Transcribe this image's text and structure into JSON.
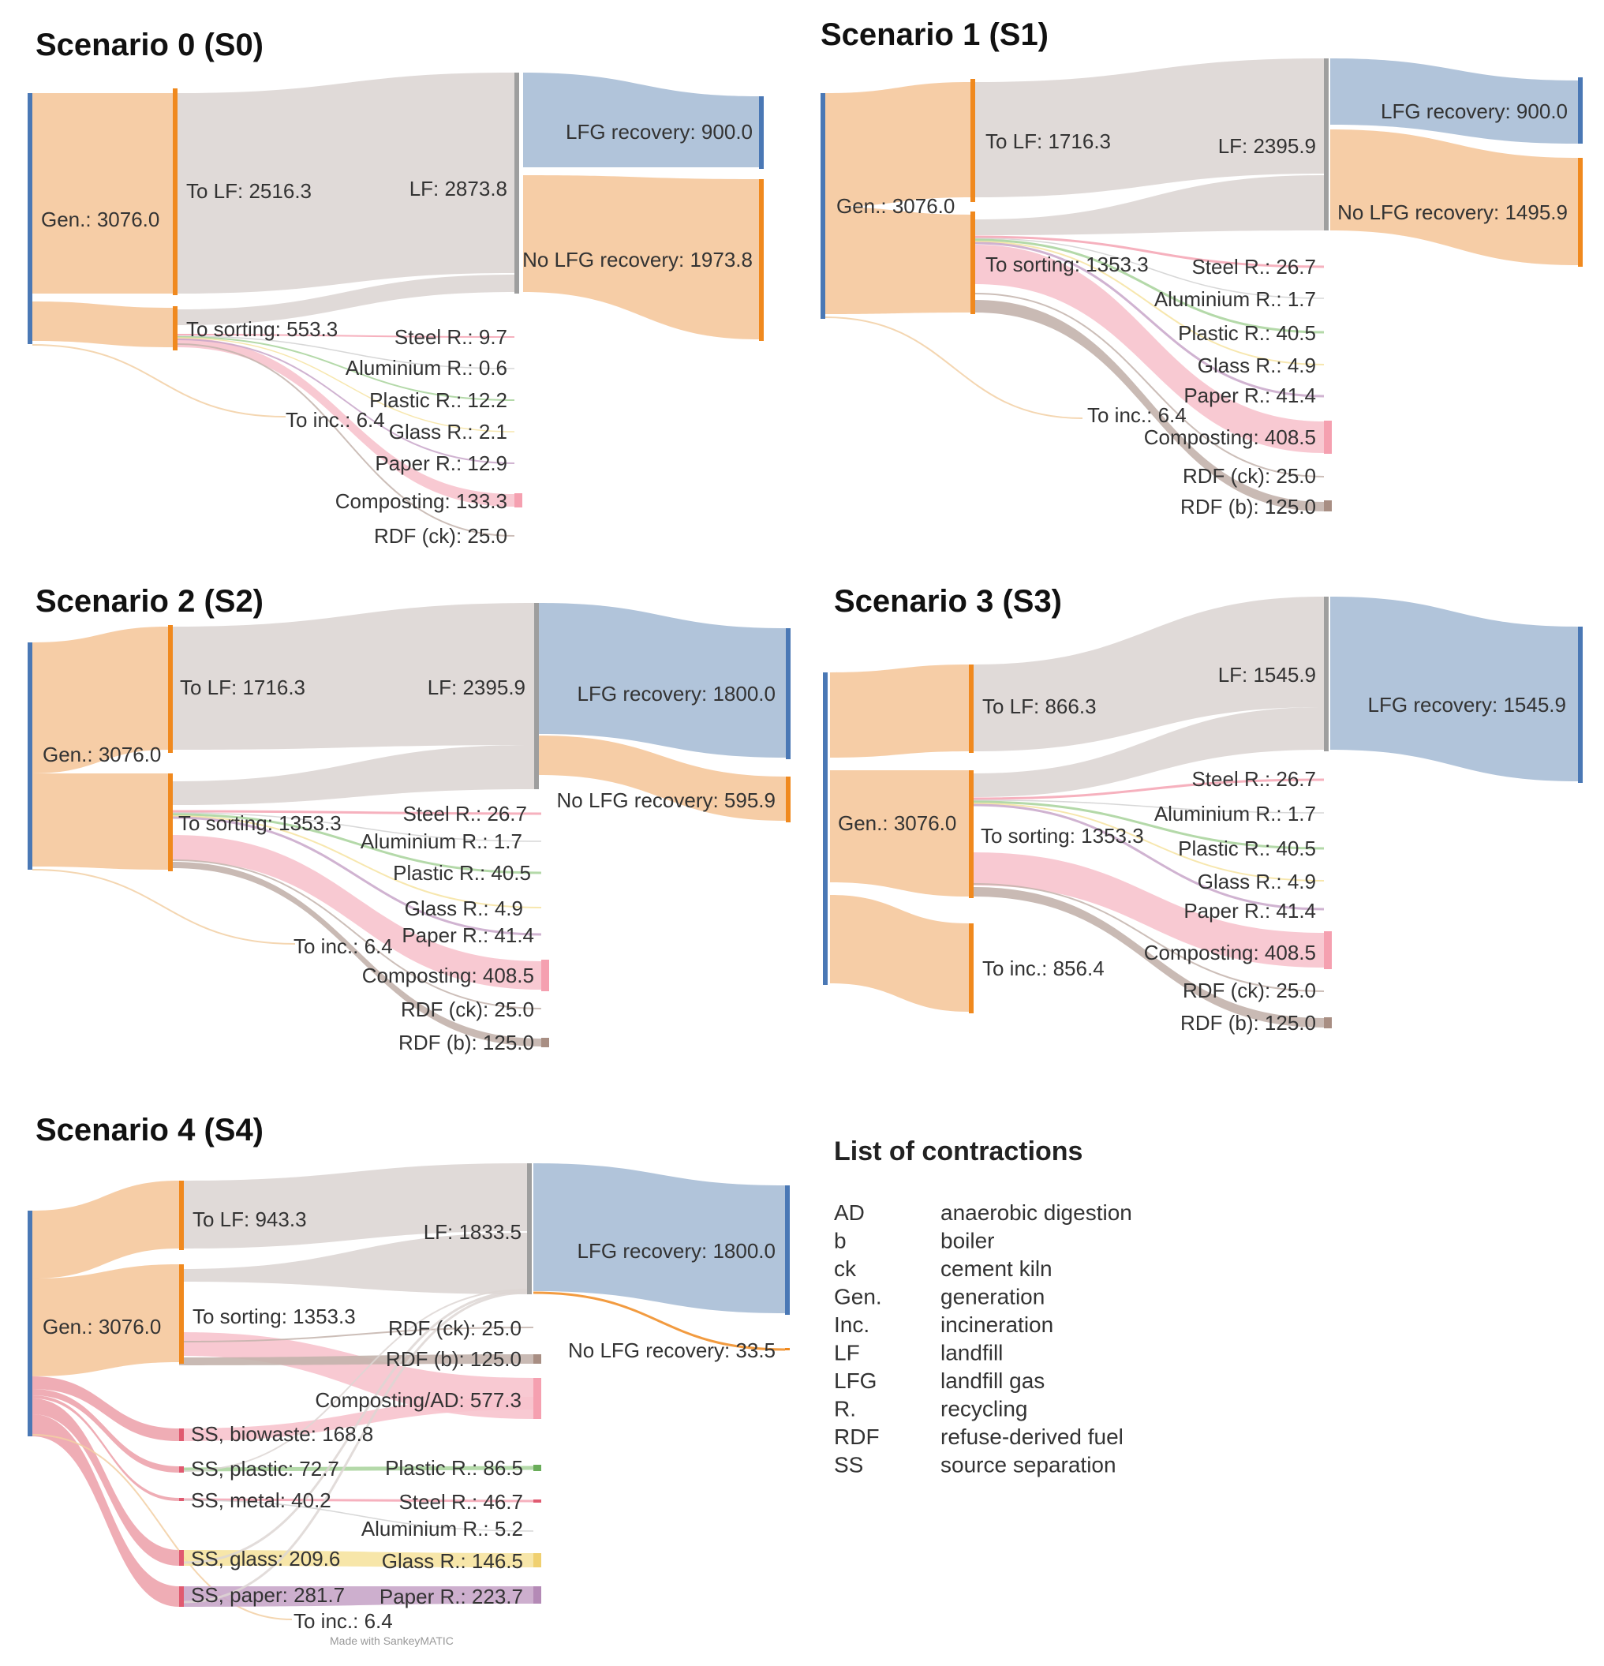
{
  "colors": {
    "gen": "#f5c89c",
    "gen_bar": "#4a78b5",
    "orange_bar": "#f0891e",
    "lf": "#ddd6d4",
    "lf_bar": "#9e9e9e",
    "lfg": "#a9bed6",
    "nolfg": "#f5c89c",
    "compost": "#f7c3cd",
    "rdfb": "#c3b3ac",
    "steel": "#f5a3b3",
    "alu": "#d0d0d0",
    "plastic": "#a7d29a",
    "glass": "#f6e3a0",
    "paper": "#c8a6c9",
    "inc": "#f2cfa3"
  },
  "diagrams": [
    {
      "title": "Scenario 0 (S0)",
      "nodes": [
        {
          "label": "Gen.: 3076.0"
        },
        {
          "label": "To LF: 2516.3"
        },
        {
          "label": "To sorting: 553.3"
        },
        {
          "label": "To inc.: 6.4"
        },
        {
          "label": "LF: 2873.8"
        },
        {
          "label": "LFG recovery: 900.0"
        },
        {
          "label": "No LFG recovery: 1973.8"
        },
        {
          "label": "Steel R.: 9.7"
        },
        {
          "label": "Aluminium R.: 0.6"
        },
        {
          "label": "Plastic R.: 12.2"
        },
        {
          "label": "Glass R.: 2.1"
        },
        {
          "label": "Paper R.: 12.9"
        },
        {
          "label": "Composting: 133.3"
        },
        {
          "label": "RDF (ck): 25.0"
        }
      ]
    },
    {
      "title": "Scenario 1 (S1)",
      "nodes": [
        {
          "label": "Gen.: 3076.0"
        },
        {
          "label": "To LF: 1716.3"
        },
        {
          "label": "To sorting: 1353.3"
        },
        {
          "label": "To inc.: 6.4"
        },
        {
          "label": "LF: 2395.9"
        },
        {
          "label": "LFG recovery: 900.0"
        },
        {
          "label": "No LFG recovery: 1495.9"
        },
        {
          "label": "Steel R.: 26.7"
        },
        {
          "label": "Aluminium R.: 1.7"
        },
        {
          "label": "Plastic R.: 40.5"
        },
        {
          "label": "Glass R.: 4.9"
        },
        {
          "label": "Paper R.: 41.4"
        },
        {
          "label": "Composting: 408.5"
        },
        {
          "label": "RDF (ck): 25.0"
        },
        {
          "label": "RDF (b): 125.0"
        }
      ]
    },
    {
      "title": "Scenario 2 (S2)",
      "nodes": [
        {
          "label": "Gen.: 3076.0"
        },
        {
          "label": "To LF: 1716.3"
        },
        {
          "label": "To sorting: 1353.3"
        },
        {
          "label": "To inc.: 6.4"
        },
        {
          "label": "LF: 2395.9"
        },
        {
          "label": "LFG recovery: 1800.0"
        },
        {
          "label": "No LFG recovery: 595.9"
        },
        {
          "label": "Steel R.: 26.7"
        },
        {
          "label": "Aluminium R.: 1.7"
        },
        {
          "label": "Plastic R.: 40.5"
        },
        {
          "label": "Glass R.: 4.9"
        },
        {
          "label": "Paper R.: 41.4"
        },
        {
          "label": "Composting: 408.5"
        },
        {
          "label": "RDF (ck): 25.0"
        },
        {
          "label": "RDF (b): 125.0"
        }
      ]
    },
    {
      "title": "Scenario 3 (S3)",
      "nodes": [
        {
          "label": "Gen.: 3076.0"
        },
        {
          "label": "To LF: 866.3"
        },
        {
          "label": "To sorting: 1353.3"
        },
        {
          "label": "To inc.: 856.4"
        },
        {
          "label": "LF: 1545.9"
        },
        {
          "label": "LFG recovery: 1545.9"
        },
        {
          "label": "Steel R.: 26.7"
        },
        {
          "label": "Aluminium R.: 1.7"
        },
        {
          "label": "Plastic R.: 40.5"
        },
        {
          "label": "Glass R.: 4.9"
        },
        {
          "label": "Paper R.: 41.4"
        },
        {
          "label": "Composting: 408.5"
        },
        {
          "label": "RDF (ck): 25.0"
        },
        {
          "label": "RDF (b): 125.0"
        }
      ]
    },
    {
      "title": "Scenario 4 (S4)",
      "nodes": [
        {
          "label": "Gen.: 3076.0"
        },
        {
          "label": "To LF: 943.3"
        },
        {
          "label": "To sorting: 1353.3"
        },
        {
          "label": "LF: 1833.5"
        },
        {
          "label": "LFG recovery: 1800.0"
        },
        {
          "label": "No LFG recovery: 33.5"
        },
        {
          "label": "RDF (ck): 25.0"
        },
        {
          "label": "RDF (b): 125.0"
        },
        {
          "label": "Composting/AD: 577.3"
        },
        {
          "label": "SS, biowaste: 168.8"
        },
        {
          "label": "SS, plastic: 72.7"
        },
        {
          "label": "Plastic R.: 86.5"
        },
        {
          "label": "SS, metal: 40.2"
        },
        {
          "label": "Steel R.: 46.7"
        },
        {
          "label": "Aluminium R.: 5.2"
        },
        {
          "label": "SS, glass: 209.6"
        },
        {
          "label": "Glass R.: 146.5"
        },
        {
          "label": "SS, paper: 281.7"
        },
        {
          "label": "Paper R.: 223.7"
        },
        {
          "label": "To inc.: 6.4"
        }
      ]
    }
  ],
  "legend": {
    "title": "List of contractions",
    "items": [
      {
        "abbr": "AD",
        "meaning": "anaerobic digestion"
      },
      {
        "abbr": "b",
        "meaning": "boiler"
      },
      {
        "abbr": "ck",
        "meaning": "cement kiln"
      },
      {
        "abbr": "Gen.",
        "meaning": "generation"
      },
      {
        "abbr": "Inc.",
        "meaning": "incineration"
      },
      {
        "abbr": "LF",
        "meaning": "landfill"
      },
      {
        "abbr": "LFG",
        "meaning": "landfill gas"
      },
      {
        "abbr": "R.",
        "meaning": "recycling"
      },
      {
        "abbr": "RDF",
        "meaning": "refuse-derived fuel"
      },
      {
        "abbr": "SS",
        "meaning": "source separation"
      }
    ]
  },
  "watermark": "Made with SankeyMATIC"
}
